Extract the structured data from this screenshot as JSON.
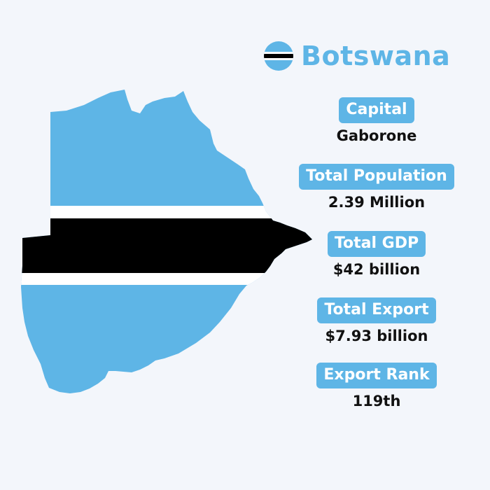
{
  "title": "Botswana",
  "flag_icon": "botswana-flag-icon",
  "colors": {
    "accent": "#5eb5e6",
    "flag_blue": "#5eb5e6",
    "flag_white": "#ffffff",
    "flag_black": "#000000",
    "background": "#f3f6fb",
    "text": "#111111"
  },
  "stats": [
    {
      "label": "Capital",
      "value": "Gaborone"
    },
    {
      "label": "Total Population",
      "value": "2.39 Million"
    },
    {
      "label": "Total GDP",
      "value": "$42 billion"
    },
    {
      "label": "Total Export",
      "value": "$7.93 billion"
    },
    {
      "label": "Export Rank",
      "value": "119th"
    }
  ]
}
